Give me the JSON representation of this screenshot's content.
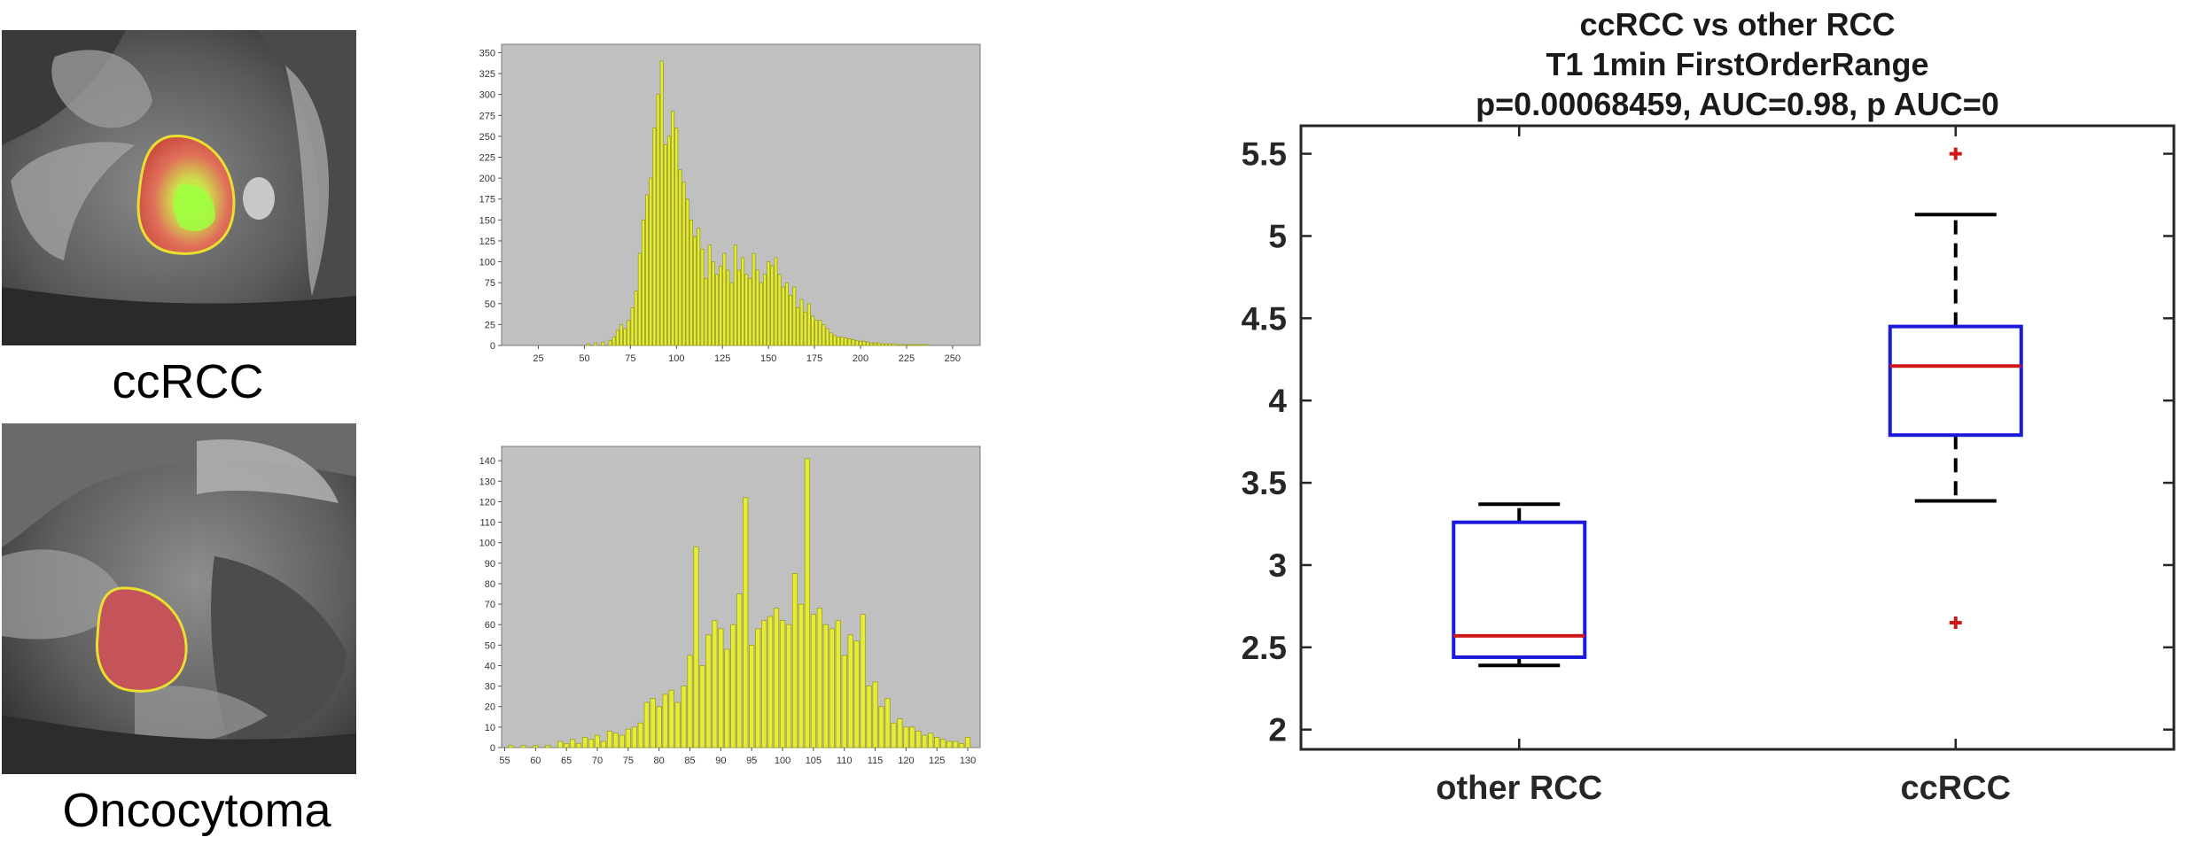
{
  "images": [
    {
      "caption": "ccRCC"
    },
    {
      "caption": "Oncocytoma"
    }
  ],
  "chart_data": [
    {
      "type": "bar",
      "x": [
        52,
        56,
        60,
        64,
        66,
        68,
        70,
        72,
        74,
        76,
        78,
        80,
        82,
        84,
        86,
        88,
        90,
        92,
        94,
        96,
        98,
        100,
        102,
        104,
        106,
        108,
        110,
        112,
        114,
        116,
        118,
        120,
        122,
        124,
        126,
        128,
        130,
        132,
        134,
        136,
        138,
        140,
        142,
        144,
        146,
        148,
        150,
        152,
        154,
        156,
        158,
        160,
        162,
        164,
        166,
        168,
        170,
        172,
        174,
        176,
        178,
        180,
        182,
        184,
        186,
        188,
        190,
        192,
        194,
        196,
        198,
        200,
        202,
        204,
        206,
        208,
        210,
        212,
        214,
        216,
        218,
        220,
        222,
        224,
        226,
        228,
        230,
        232,
        234,
        236,
        238,
        240,
        242
      ],
      "values": [
        2,
        3,
        4,
        6,
        10,
        18,
        25,
        20,
        30,
        45,
        65,
        110,
        150,
        180,
        200,
        260,
        300,
        340,
        240,
        250,
        280,
        260,
        210,
        195,
        175,
        150,
        130,
        140,
        115,
        80,
        120,
        100,
        85,
        95,
        110,
        90,
        75,
        120,
        90,
        105,
        85,
        80,
        110,
        90,
        75,
        85,
        100,
        95,
        105,
        85,
        70,
        75,
        60,
        70,
        45,
        55,
        40,
        50,
        35,
        30,
        30,
        25,
        20,
        15,
        12,
        10,
        10,
        9,
        8,
        7,
        6,
        5,
        5,
        4,
        3,
        3,
        3,
        2,
        2,
        2,
        2,
        1,
        1,
        1,
        1,
        1,
        1,
        1,
        1,
        1,
        0,
        0,
        0
      ],
      "xticks": [
        25,
        50,
        75,
        100,
        125,
        150,
        175,
        200,
        225,
        250
      ],
      "yticks": [
        0,
        25,
        50,
        75,
        100,
        125,
        150,
        175,
        200,
        225,
        250,
        275,
        300,
        325,
        350
      ],
      "xlim": [
        5,
        265
      ],
      "ylim": [
        0,
        360
      ],
      "grid": false,
      "bar_color": "#e6ec36"
    },
    {
      "type": "bar",
      "x": [
        56,
        58,
        60,
        62,
        64,
        65,
        66,
        67,
        68,
        69,
        70,
        71,
        72,
        73,
        74,
        75,
        76,
        77,
        78,
        79,
        80,
        81,
        82,
        83,
        84,
        85,
        86,
        87,
        88,
        89,
        90,
        91,
        92,
        93,
        94,
        95,
        96,
        97,
        98,
        99,
        100,
        101,
        102,
        103,
        104,
        105,
        106,
        107,
        108,
        109,
        110,
        111,
        112,
        113,
        114,
        115,
        116,
        117,
        118,
        119,
        120,
        121,
        122,
        123,
        124,
        125,
        126,
        127,
        128,
        129,
        130
      ],
      "values": [
        1,
        1,
        1,
        1,
        3,
        2,
        4,
        2,
        5,
        4,
        6,
        3,
        8,
        7,
        6,
        9,
        10,
        12,
        22,
        24,
        20,
        26,
        28,
        22,
        30,
        45,
        98,
        40,
        55,
        62,
        58,
        48,
        60,
        75,
        122,
        50,
        58,
        62,
        64,
        68,
        62,
        60,
        85,
        70,
        141,
        65,
        68,
        60,
        58,
        62,
        45,
        55,
        52,
        65,
        30,
        32,
        20,
        24,
        12,
        14,
        10,
        10,
        8,
        6,
        7,
        5,
        4,
        3,
        3,
        2,
        5
      ],
      "xticks": [
        55,
        60,
        65,
        70,
        75,
        80,
        85,
        90,
        95,
        100,
        105,
        110,
        115,
        120,
        125,
        130
      ],
      "yticks": [
        0,
        10,
        20,
        30,
        40,
        50,
        60,
        70,
        80,
        90,
        100,
        110,
        120,
        130,
        140
      ],
      "xlim": [
        54.5,
        132
      ],
      "ylim": [
        0,
        147
      ],
      "grid": false,
      "bar_color": "#e6ec36"
    },
    {
      "type": "box",
      "title": [
        "ccRCC vs other RCC",
        "T1 1min FirstOrderRange",
        "p=0.00068459, AUC=0.98, p AUC=0"
      ],
      "categories": [
        "other RCC",
        "ccRCC"
      ],
      "boxes": [
        {
          "whisker_low": 2.39,
          "q1": 2.44,
          "median": 2.57,
          "q3": 3.26,
          "whisker_high": 3.37,
          "outliers": []
        },
        {
          "whisker_low": 3.39,
          "q1": 3.79,
          "median": 4.21,
          "q3": 4.45,
          "whisker_high": 5.13,
          "outliers": [
            5.5,
            2.65
          ]
        }
      ],
      "yticks": [
        "2",
        "2.5",
        "3",
        "3.5",
        "4",
        "4.5",
        "5",
        "5.5"
      ],
      "ylim": [
        1.88,
        5.67
      ],
      "colors": {
        "box": "#1a1adc",
        "median": "#d01818",
        "whisker": "#000000",
        "outlier": "#d01818"
      }
    }
  ]
}
